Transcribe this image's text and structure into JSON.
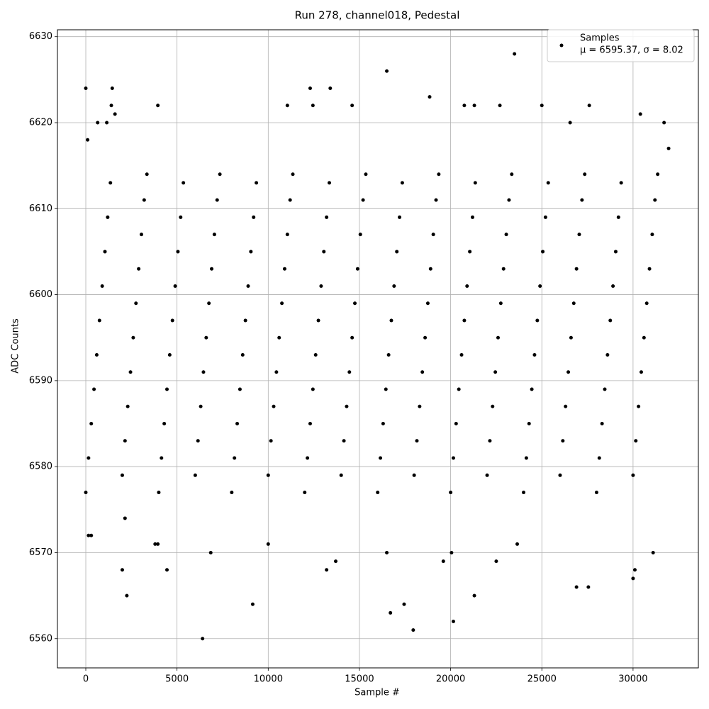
{
  "chart_data": {
    "type": "scatter",
    "title": "Run 278, channel018, Pedestal",
    "x_label": "Sample #",
    "y_label": "ADC Counts",
    "annotation": "μ = 6595.37, σ = 8.02",
    "xlim": [
      -1555,
      33580
    ],
    "ylim": [
      6556.6,
      6630.8
    ],
    "xticks": [
      0,
      5000,
      10000,
      15000,
      20000,
      25000,
      30000
    ],
    "yticks": [
      6560,
      6570,
      6580,
      6590,
      6600,
      6610,
      6620,
      6630
    ],
    "grid": true,
    "legend": "upper right",
    "series": [
      {
        "name": "Samples",
        "color": "#000000",
        "x": [
          0,
          150,
          300,
          450,
          600,
          750,
          900,
          1050,
          1200,
          1350,
          2000,
          2150,
          2300,
          2450,
          2600,
          2750,
          2900,
          3050,
          3200,
          3350,
          4000,
          4150,
          4300,
          4450,
          4600,
          4750,
          4900,
          5050,
          5200,
          5350,
          6000,
          6150,
          6300,
          6450,
          6600,
          6750,
          6900,
          7050,
          7200,
          7350,
          8000,
          8150,
          8300,
          8450,
          8600,
          8750,
          8900,
          9050,
          9200,
          9350,
          10000,
          10150,
          10300,
          10450,
          10600,
          10750,
          10900,
          11050,
          11200,
          11350,
          12000,
          12150,
          12300,
          12450,
          12600,
          12750,
          12900,
          13050,
          13200,
          13350,
          14000,
          14150,
          14300,
          14450,
          14600,
          14750,
          14900,
          15050,
          15200,
          15350,
          16000,
          16150,
          16300,
          16450,
          16600,
          16750,
          16900,
          17050,
          17200,
          17350,
          18000,
          18150,
          18300,
          18450,
          18600,
          18750,
          18900,
          19050,
          19200,
          19350,
          20000,
          20150,
          20300,
          20450,
          20600,
          20750,
          20900,
          21050,
          21200,
          21350,
          22000,
          22150,
          22300,
          22450,
          22600,
          22750,
          22900,
          23050,
          23200,
          23350,
          24000,
          24150,
          24300,
          24450,
          24600,
          24750,
          24900,
          25050,
          25200,
          25350,
          26000,
          26150,
          26300,
          26450,
          26600,
          26750,
          26900,
          27050,
          27200,
          27350,
          28000,
          28150,
          28300,
          28450,
          28600,
          28750,
          28900,
          29050,
          29200,
          29350,
          30000,
          30150,
          30300,
          30450,
          30600,
          30750,
          30900,
          31050,
          31200,
          31350,
          0,
          100,
          150,
          300,
          650,
          1150,
          1400,
          1450,
          1600,
          2000,
          2250,
          2150,
          4450,
          3800,
          3950,
          3950,
          6400,
          6850,
          9150,
          10000,
          11050,
          12300,
          12450,
          13200,
          13400,
          13700,
          14600,
          16500,
          16500,
          16700,
          17450,
          17950,
          18850,
          19600,
          20050,
          20150,
          20750,
          21300,
          21300,
          22500,
          22700,
          23500,
          23650,
          25000,
          26550,
          26900,
          27550,
          27600,
          30000,
          30100,
          30400,
          31100,
          31700,
          31950
        ],
        "values": [
          6577,
          6581,
          6585,
          6589,
          6593,
          6597,
          6601,
          6605,
          6609,
          6613,
          6579,
          6583,
          6587,
          6591,
          6595,
          6599,
          6603,
          6607,
          6611,
          6614,
          6577,
          6581,
          6585,
          6589,
          6593,
          6597,
          6601,
          6605,
          6609,
          6613,
          6579,
          6583,
          6587,
          6591,
          6595,
          6599,
          6603,
          6607,
          6611,
          6614,
          6577,
          6581,
          6585,
          6589,
          6593,
          6597,
          6601,
          6605,
          6609,
          6613,
          6579,
          6583,
          6587,
          6591,
          6595,
          6599,
          6603,
          6607,
          6611,
          6614,
          6577,
          6581,
          6585,
          6589,
          6593,
          6597,
          6601,
          6605,
          6609,
          6613,
          6579,
          6583,
          6587,
          6591,
          6595,
          6599,
          6603,
          6607,
          6611,
          6614,
          6577,
          6581,
          6585,
          6589,
          6593,
          6597,
          6601,
          6605,
          6609,
          6613,
          6579,
          6583,
          6587,
          6591,
          6595,
          6599,
          6603,
          6607,
          6611,
          6614,
          6577,
          6581,
          6585,
          6589,
          6593,
          6597,
          6601,
          6605,
          6609,
          6613,
          6579,
          6583,
          6587,
          6591,
          6595,
          6599,
          6603,
          6607,
          6611,
          6614,
          6577,
          6581,
          6585,
          6589,
          6593,
          6597,
          6601,
          6605,
          6609,
          6613,
          6579,
          6583,
          6587,
          6591,
          6595,
          6599,
          6603,
          6607,
          6611,
          6614,
          6577,
          6581,
          6585,
          6589,
          6593,
          6597,
          6601,
          6605,
          6609,
          6613,
          6579,
          6583,
          6587,
          6591,
          6595,
          6599,
          6603,
          6607,
          6611,
          6614,
          6624,
          6618,
          6572,
          6572,
          6620,
          6620,
          6622,
          6624,
          6621,
          6568,
          6565,
          6574,
          6568,
          6571,
          6571,
          6622,
          6560,
          6570,
          6564,
          6571,
          6622,
          6624,
          6622,
          6568,
          6624,
          6569,
          6622,
          6626,
          6570,
          6563,
          6564,
          6561,
          6623,
          6569,
          6570,
          6562,
          6622,
          6622,
          6565,
          6569,
          6622,
          6628,
          6571,
          6622,
          6620,
          6566,
          6566,
          6622,
          6567,
          6568,
          6621,
          6570,
          6620,
          6617
        ]
      }
    ]
  }
}
